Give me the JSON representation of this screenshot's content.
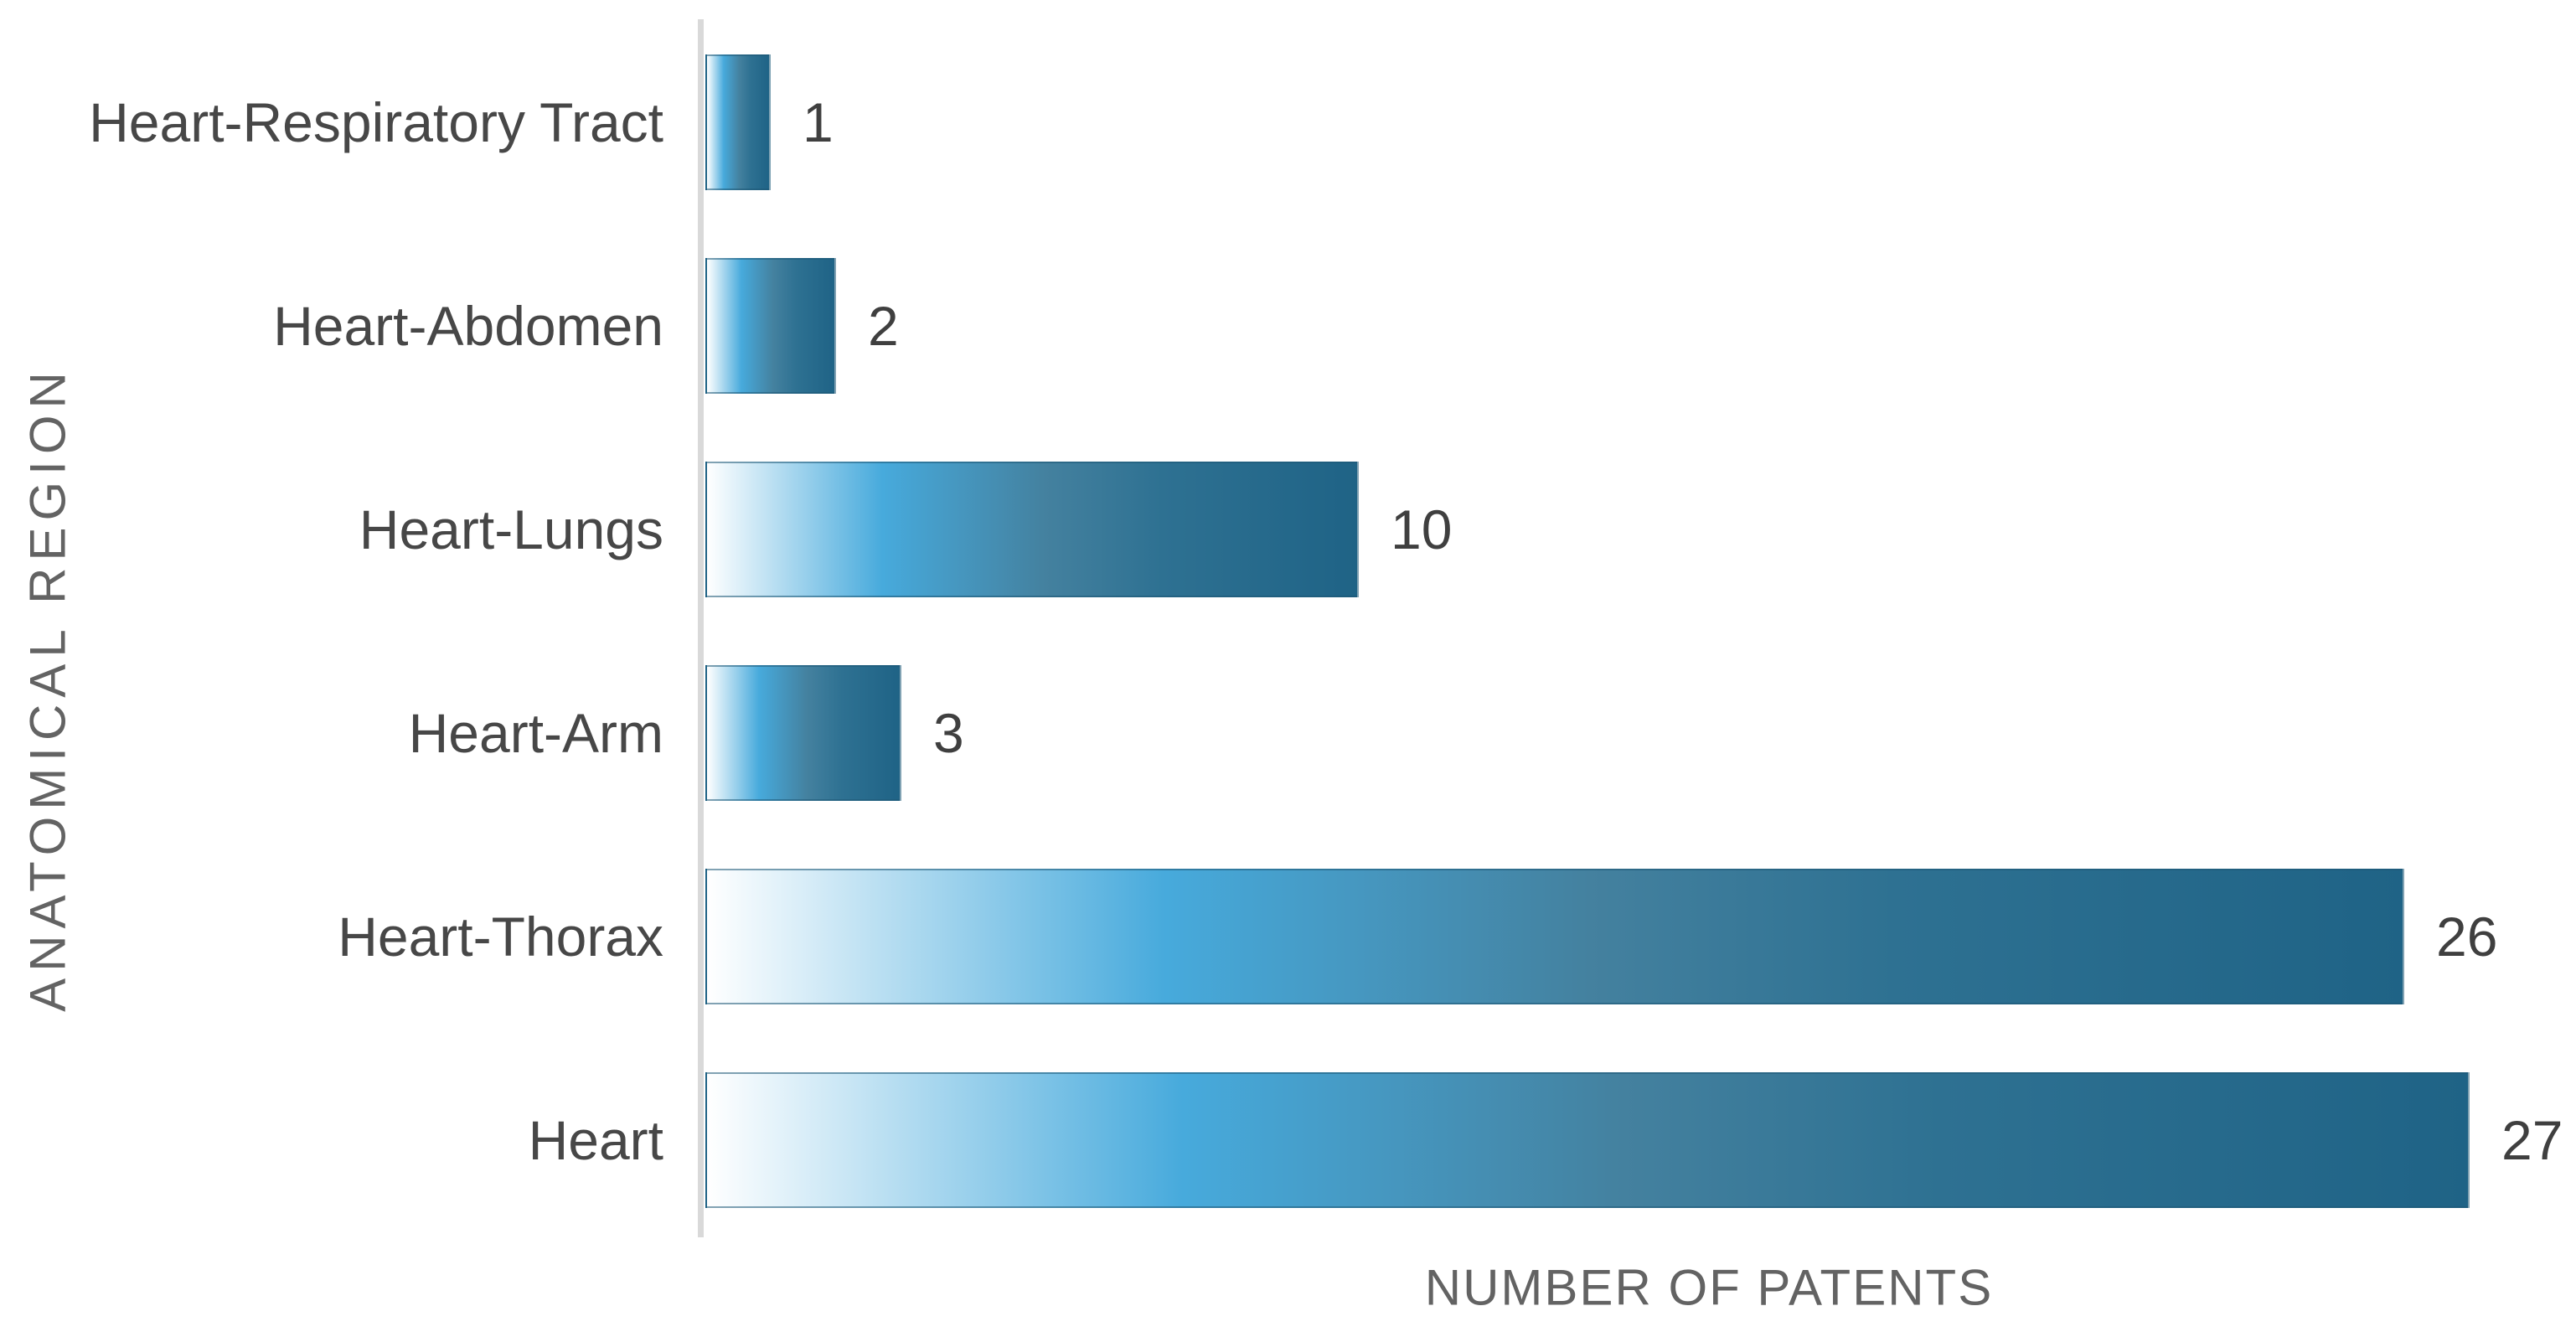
{
  "chart_data": {
    "type": "bar",
    "orientation": "horizontal",
    "title": "",
    "categories": [
      "Heart-Respiratory Tract",
      "Heart-Abdomen",
      "Heart-Lungs",
      "Heart-Arm",
      "Heart-Thorax",
      "Heart"
    ],
    "values": [
      1,
      2,
      10,
      3,
      26,
      27
    ],
    "data_labels": [
      "1",
      "2",
      "10",
      "3",
      "26",
      "27"
    ],
    "xlabel": "NUMBER OF PATENTS",
    "ylabel": "ANATOMICAL REGION",
    "xlim": [
      0,
      27
    ],
    "grid": false,
    "legend": false,
    "axis_ticks_visible": false,
    "colors": {
      "bar_gradient_stops": [
        "#FFFFFF",
        "#47AADC",
        "#44819F",
        "#2E7192",
        "#1F6386"
      ],
      "bar_border": "#1E5876",
      "axis_line": "#D9D9D9",
      "category_label": "#474747",
      "value_label": "#3F3F3F",
      "axis_title": "#636363",
      "background": "#FFFFFF"
    }
  }
}
